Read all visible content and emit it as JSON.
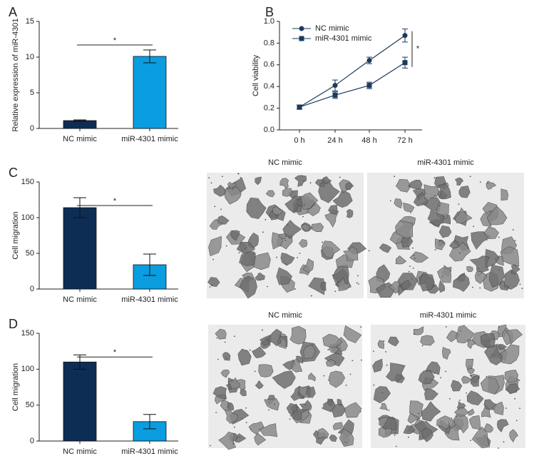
{
  "chart_data": [
    {
      "type": "bar",
      "panel": "A",
      "ylabel": "Relative expression of miR-4301",
      "categories": [
        "NC mimic",
        "miR-4301 mimic"
      ],
      "values": [
        1.1,
        10.1
      ],
      "errors": [
        0.1,
        0.9
      ],
      "colors": [
        "#0d2d55",
        "#0a9de0"
      ],
      "ylim": [
        0,
        15
      ],
      "yticks": [
        0,
        5,
        10,
        15
      ],
      "annotation": "*"
    },
    {
      "type": "line",
      "panel": "B",
      "ylabel": "Cell viability",
      "categories": [
        "0 h",
        "24 h",
        "48 h",
        "72 h"
      ],
      "series": [
        {
          "name": "NC mimic",
          "color": "#1b3a5c",
          "marker": "circle",
          "values": [
            0.21,
            0.41,
            0.64,
            0.87
          ],
          "errors": [
            0.02,
            0.05,
            0.03,
            0.06
          ]
        },
        {
          "name": "miR-4301 mimic",
          "color": "#1b3a5c",
          "marker": "square",
          "values": [
            0.21,
            0.32,
            0.41,
            0.62
          ],
          "errors": [
            0.02,
            0.03,
            0.03,
            0.05
          ]
        }
      ],
      "ylim": [
        0,
        1
      ],
      "yticks": [
        {
          "value": 0,
          "label": "0.0"
        },
        0.2,
        0.4,
        0.6,
        0.8,
        {
          "value": 1,
          "label": "1.0"
        }
      ],
      "annotation": "*"
    },
    {
      "type": "bar",
      "panel": "C",
      "ylabel": "Cell migration",
      "categories": [
        "NC mimic",
        "miR-4301 mimic"
      ],
      "values": [
        114,
        34
      ],
      "errors": [
        14,
        15
      ],
      "colors": [
        "#0d2d55",
        "#0a9de0"
      ],
      "ylim": [
        0,
        150
      ],
      "yticks": [
        0,
        50,
        100,
        150
      ],
      "annotation": "*",
      "image_labels": [
        "NC mimic",
        "miR-4301 mimic"
      ]
    },
    {
      "type": "bar",
      "panel": "D",
      "ylabel": "Cell migration",
      "categories": [
        "NC mimic",
        "miR-4301 mimic"
      ],
      "values": [
        110,
        27
      ],
      "errors": [
        10,
        10
      ],
      "colors": [
        "#0d2d55",
        "#0a9de0"
      ],
      "ylim": [
        0,
        150
      ],
      "yticks": [
        0,
        50,
        100,
        150
      ],
      "annotation": "*",
      "image_labels": [
        "NC mimic",
        "miR-4301 mimic"
      ]
    }
  ]
}
